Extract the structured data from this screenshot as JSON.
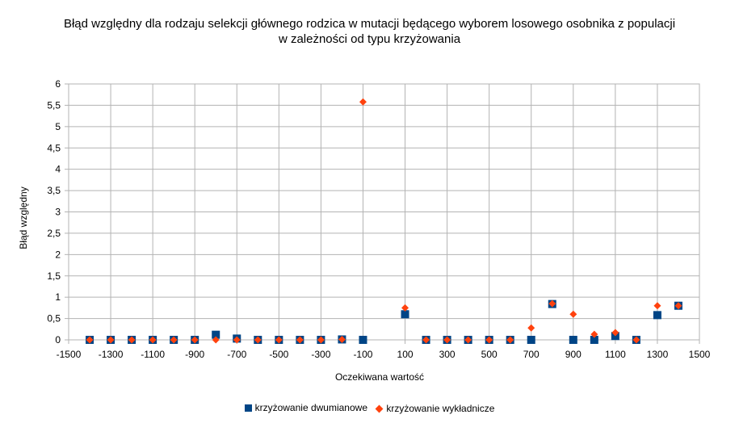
{
  "chart_data": {
    "type": "scatter",
    "title": "Błąd względny dla  rodzaju selekcji głównego rodzica w mutacji będącego wyborem  losowego osobnika z populacji\nw zależności od typu krzyżowania",
    "xlabel": "Oczekiwana wartość",
    "ylabel": "Błąd względny",
    "xlim": [
      -1500,
      1500
    ],
    "ylim": [
      0,
      6
    ],
    "x_ticks": [
      "-1500",
      "-1300",
      "-1100",
      "-900",
      "-700",
      "-500",
      "-300",
      "-100",
      "100",
      "300",
      "500",
      "700",
      "900",
      "1100",
      "1300",
      "1500"
    ],
    "y_ticks": [
      "0",
      "0,5",
      "1",
      "1,5",
      "2",
      "2,5",
      "3",
      "3,5",
      "4",
      "4,5",
      "5",
      "5,5",
      "6"
    ],
    "grid": true,
    "legend_position": "bottom",
    "series": [
      {
        "name": "krzyżowanie dwumianowe",
        "color": "#004586",
        "marker": "square",
        "points": [
          [
            -1400,
            0
          ],
          [
            -1300,
            0
          ],
          [
            -1200,
            0
          ],
          [
            -1100,
            0
          ],
          [
            -1000,
            0
          ],
          [
            -900,
            0
          ],
          [
            -800,
            0.12
          ],
          [
            -700,
            0.03
          ],
          [
            -600,
            0
          ],
          [
            -500,
            0
          ],
          [
            -400,
            0
          ],
          [
            -300,
            0
          ],
          [
            -200,
            0.01
          ],
          [
            -100,
            0
          ],
          [
            100,
            0.6
          ],
          [
            200,
            0
          ],
          [
            300,
            0
          ],
          [
            400,
            0
          ],
          [
            500,
            0
          ],
          [
            600,
            0
          ],
          [
            700,
            0
          ],
          [
            800,
            0.84
          ],
          [
            900,
            0
          ],
          [
            1000,
            0
          ],
          [
            1100,
            0.09
          ],
          [
            1200,
            0
          ],
          [
            1300,
            0.58
          ],
          [
            1400,
            0.8
          ]
        ]
      },
      {
        "name": "krzyżowanie wykładnicze",
        "color": "#ff420e",
        "marker": "diamond",
        "points": [
          [
            -1400,
            0
          ],
          [
            -1300,
            0
          ],
          [
            -1200,
            0
          ],
          [
            -1100,
            0
          ],
          [
            -1000,
            0
          ],
          [
            -900,
            0
          ],
          [
            -800,
            0
          ],
          [
            -700,
            0
          ],
          [
            -600,
            0
          ],
          [
            -500,
            0
          ],
          [
            -400,
            0
          ],
          [
            -300,
            0
          ],
          [
            -200,
            0.01
          ],
          [
            -100,
            5.58
          ],
          [
            100,
            0.75
          ],
          [
            200,
            0
          ],
          [
            300,
            0
          ],
          [
            400,
            0
          ],
          [
            500,
            0
          ],
          [
            600,
            0
          ],
          [
            700,
            0.28
          ],
          [
            800,
            0.85
          ],
          [
            900,
            0.6
          ],
          [
            1000,
            0.13
          ],
          [
            1100,
            0.17
          ],
          [
            1200,
            0
          ],
          [
            1300,
            0.8
          ],
          [
            1400,
            0.8
          ]
        ]
      }
    ]
  }
}
